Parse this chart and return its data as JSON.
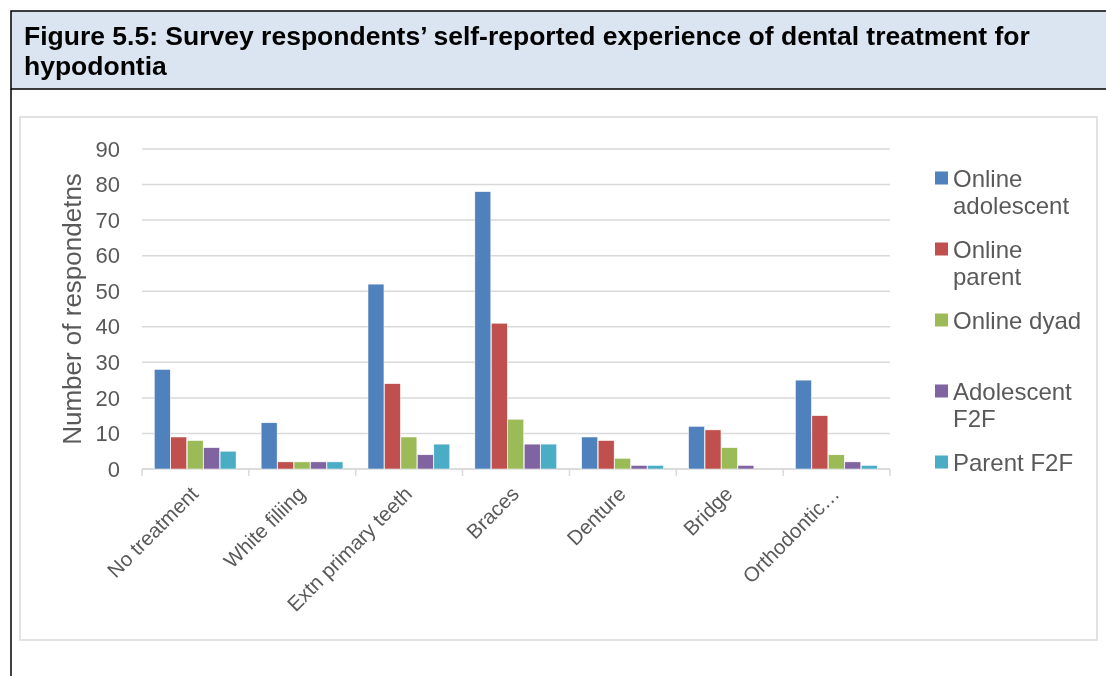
{
  "chart_data": {
    "type": "bar",
    "title": "Figure 5.5: Survey respondents’ self-reported experience of dental treatment for hypodontia",
    "ylabel": "Number of respondetns",
    "categories": [
      "No treatment",
      "White filiing",
      "Extn primary teeth",
      "Braces",
      "Denture",
      "Bridge",
      "Orthodontic…"
    ],
    "series": [
      {
        "name": "Online adolescent",
        "color": "#4f81bd",
        "values": [
          28,
          13,
          52,
          78,
          9,
          12,
          25
        ]
      },
      {
        "name": "Online parent",
        "color": "#c0504d",
        "values": [
          9,
          2,
          24,
          41,
          8,
          11,
          15
        ]
      },
      {
        "name": "Online dyad",
        "color": "#9bbb59",
        "values": [
          8,
          2,
          9,
          14,
          3,
          6,
          4
        ]
      },
      {
        "name": "Adolescent F2F",
        "color": "#8064a2",
        "values": [
          6,
          2,
          4,
          7,
          1,
          1,
          2
        ]
      },
      {
        "name": "Parent F2F",
        "color": "#4bacc6",
        "values": [
          5,
          2,
          7,
          7,
          1,
          0,
          1
        ]
      }
    ],
    "ylim": [
      0,
      90
    ],
    "yticks": [
      0,
      10,
      20,
      30,
      40,
      50,
      60,
      70,
      80,
      90
    ],
    "grid": "y",
    "legend": "right"
  }
}
